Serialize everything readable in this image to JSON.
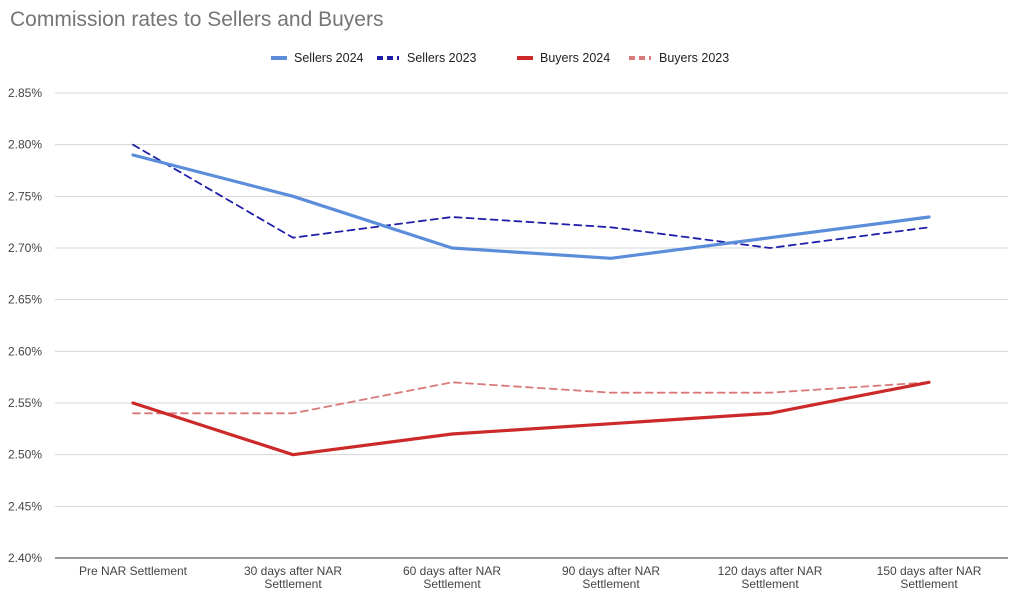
{
  "chart_data": {
    "type": "line",
    "title": "Commission rates to Sellers and Buyers",
    "categories": [
      [
        "Pre NAR Settlement"
      ],
      [
        "30 days after NAR",
        "Settlement"
      ],
      [
        "60 days after NAR",
        "Settlement"
      ],
      [
        "90 days after NAR",
        "Settlement"
      ],
      [
        "120 days after NAR",
        "Settlement"
      ],
      [
        "150 days after NAR",
        "Settlement"
      ]
    ],
    "y_ticks": [
      "2.40%",
      "2.45%",
      "2.50%",
      "2.55%",
      "2.60%",
      "2.65%",
      "2.70%",
      "2.75%",
      "2.80%",
      "2.85%"
    ],
    "ylim": [
      2.4,
      2.85
    ],
    "grid": true,
    "legend_position": "top-center",
    "series": [
      {
        "name": "Sellers 2024",
        "values": [
          2.79,
          2.75,
          2.7,
          2.69,
          2.71,
          2.73
        ],
        "color": "#5b8ddb",
        "dashed": false
      },
      {
        "name": "Sellers 2023",
        "values": [
          2.8,
          2.71,
          2.73,
          2.72,
          2.7,
          2.72
        ],
        "color": "#1f1fa8",
        "dashed": true
      },
      {
        "name": "Buyers 2024",
        "values": [
          2.55,
          2.5,
          2.52,
          2.53,
          2.54,
          2.57
        ],
        "color": "#cc2a2a",
        "dashed": false
      },
      {
        "name": "Buyers 2023",
        "values": [
          2.54,
          2.54,
          2.57,
          2.56,
          2.56,
          2.57
        ],
        "color": "#d97a7a",
        "dashed": true
      }
    ]
  }
}
